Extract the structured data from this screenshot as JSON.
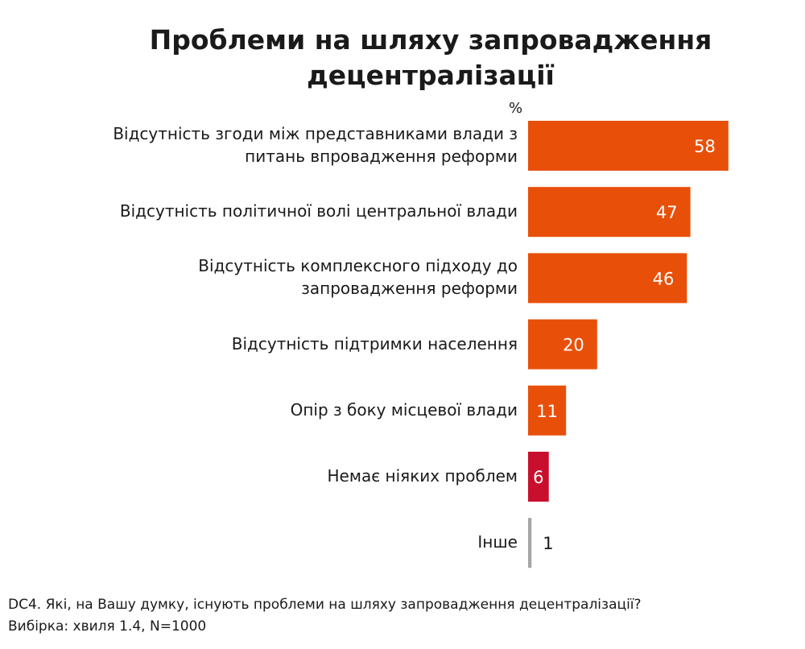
{
  "chart_data": {
    "type": "bar",
    "orientation": "horizontal",
    "title_lines": [
      "Проблеми на шляху запровадження",
      "децентралізації"
    ],
    "unit": "%",
    "categories": [
      [
        "Відсутність згоди між представниками влади з",
        "питань впровадження реформи"
      ],
      [
        "Відсутність політичної волі центральної влади"
      ],
      [
        "Відсутність комплексного підходу до",
        "запровадження реформи"
      ],
      [
        "Відсутність підтримки населення"
      ],
      [
        "Опір з  боку місцевої влади"
      ],
      [
        "Немає ніяких проблем"
      ],
      [
        "Інше"
      ]
    ],
    "values": [
      58,
      47,
      46,
      20,
      11,
      6,
      1
    ],
    "value_labels": [
      "58",
      "47",
      "46",
      "20",
      "11",
      "6",
      "1"
    ],
    "bar_colors": [
      "#e8500a",
      "#e8500a",
      "#e8500a",
      "#e8500a",
      "#e8500a",
      "#c8102e",
      "#a6a6a6"
    ],
    "xlim": [
      0,
      60
    ]
  },
  "footnote": {
    "question": "DC4. Які, на Вашу думку, існують проблеми на шляху запровадження децентралізації?",
    "sample": "Вибірка: хвиля 1.4, N=1000"
  }
}
